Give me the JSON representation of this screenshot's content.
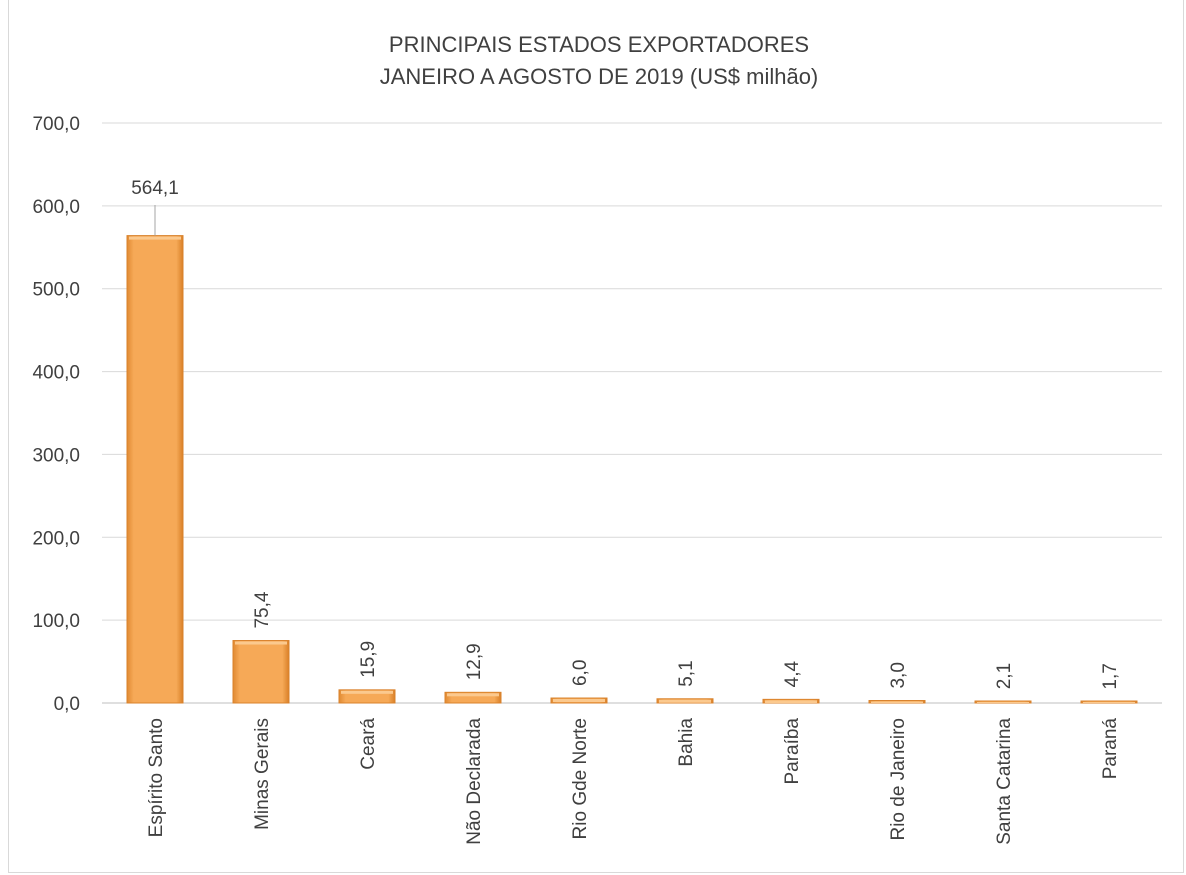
{
  "chart_data": {
    "type": "bar",
    "title": "PRINCIPAIS ESTADOS EXPORTADORES",
    "subtitle": "JANEIRO A AGOSTO DE 2019  (US$  milhão)",
    "categories": [
      "Espírito Santo",
      "Minas Gerais",
      "Ceará",
      "Não Declarada",
      "Rio Gde Norte",
      "Bahia",
      "Paraíba",
      "Rio de Janeiro",
      "Santa Catarina",
      "Paraná"
    ],
    "values": [
      564.1,
      75.4,
      15.9,
      12.9,
      6.0,
      5.1,
      4.4,
      3.0,
      2.1,
      1.7
    ],
    "data_labels": [
      "564,1",
      "75,4",
      "15,9",
      "12,9",
      "6,0",
      "5,1",
      "4,4",
      "3,0",
      "2,1",
      "1,7"
    ],
    "yticks": [
      "0,0",
      "100,0",
      "200,0",
      "300,0",
      "400,0",
      "500,0",
      "600,0",
      "700,0"
    ],
    "ylim": [
      0,
      700
    ],
    "grid": true,
    "legend": "none",
    "bar_color": "#f4a04a",
    "bar_dark": "#d9822b"
  }
}
